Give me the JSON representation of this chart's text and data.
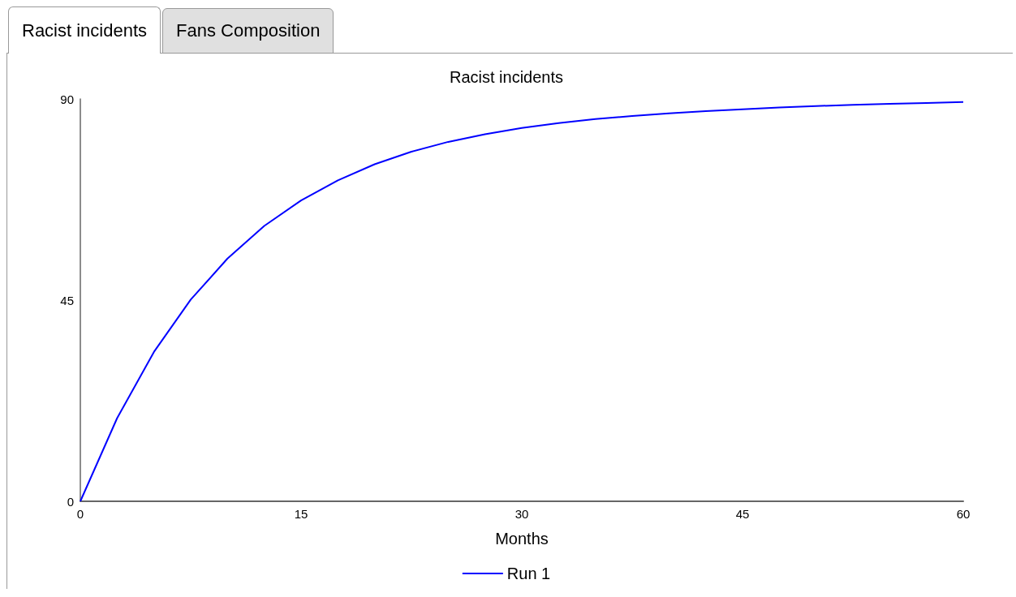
{
  "chart_data": {
    "type": "line",
    "title": "Racist incidents",
    "xlabel": "Months",
    "annotations": [
      "Racist incidents",
      "Fans Composition"
    ],
    "x": [
      0,
      2.5,
      5,
      7.5,
      10,
      12.5,
      15,
      17.5,
      20,
      22.5,
      25,
      27.5,
      30,
      32.5,
      35,
      37.5,
      40,
      42.5,
      45,
      47.5,
      50,
      52.5,
      55,
      57.5,
      60
    ],
    "series": [
      {
        "name": "Run 1",
        "color": "#0000ff",
        "values": [
          0,
          18.6,
          33.4,
          45.1,
          54.3,
          61.6,
          67.3,
          71.8,
          75.4,
          78.2,
          80.4,
          82.1,
          83.5,
          84.6,
          85.5,
          86.2,
          86.8,
          87.3,
          87.7,
          88.1,
          88.4,
          88.7,
          88.9,
          89.1,
          89.3
        ]
      }
    ],
    "xlim": [
      0,
      60
    ],
    "xticks": [
      0,
      15,
      30,
      45,
      60
    ],
    "ylim": [
      0,
      90
    ],
    "yticks": [
      0,
      45,
      90
    ],
    "grid": false,
    "legend": "bottom",
    "marker": "none",
    "line_style": "solid"
  }
}
